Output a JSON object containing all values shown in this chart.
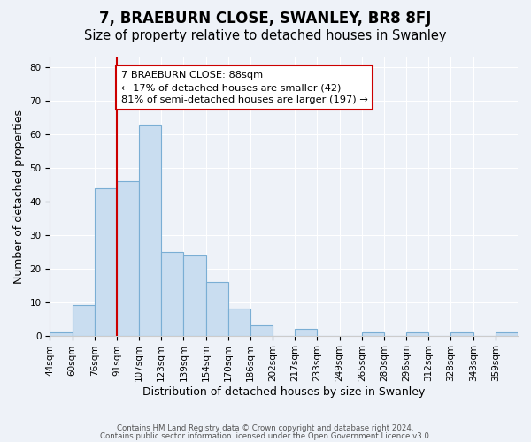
{
  "title": "7, BRAEBURN CLOSE, SWANLEY, BR8 8FJ",
  "subtitle": "Size of property relative to detached houses in Swanley",
  "xlabel": "Distribution of detached houses by size in Swanley",
  "ylabel": "Number of detached properties",
  "bin_labels": [
    "44sqm",
    "60sqm",
    "76sqm",
    "91sqm",
    "107sqm",
    "123sqm",
    "139sqm",
    "154sqm",
    "170sqm",
    "186sqm",
    "202sqm",
    "217sqm",
    "233sqm",
    "249sqm",
    "265sqm",
    "280sqm",
    "296sqm",
    "312sqm",
    "328sqm",
    "343sqm",
    "359sqm"
  ],
  "bar_heights": [
    1,
    9,
    44,
    46,
    63,
    25,
    24,
    16,
    8,
    3,
    0,
    2,
    0,
    0,
    1,
    0,
    1,
    0,
    1,
    0,
    1
  ],
  "bar_color": "#c9ddf0",
  "bar_edge_color": "#7aaed4",
  "ylim": [
    0,
    83
  ],
  "yticks": [
    0,
    10,
    20,
    30,
    40,
    50,
    60,
    70,
    80
  ],
  "vline_x": 3.0,
  "vline_color": "#cc0000",
  "annotation_text": "7 BRAEBURN CLOSE: 88sqm\n← 17% of detached houses are smaller (42)\n81% of semi-detached houses are larger (197) →",
  "annotation_box_color": "#ffffff",
  "annotation_box_edge": "#cc0000",
  "footer_line1": "Contains HM Land Registry data © Crown copyright and database right 2024.",
  "footer_line2": "Contains public sector information licensed under the Open Government Licence v3.0.",
  "background_color": "#eef2f8",
  "title_fontsize": 12,
  "subtitle_fontsize": 10.5,
  "label_fontsize": 9,
  "tick_fontsize": 7.5
}
